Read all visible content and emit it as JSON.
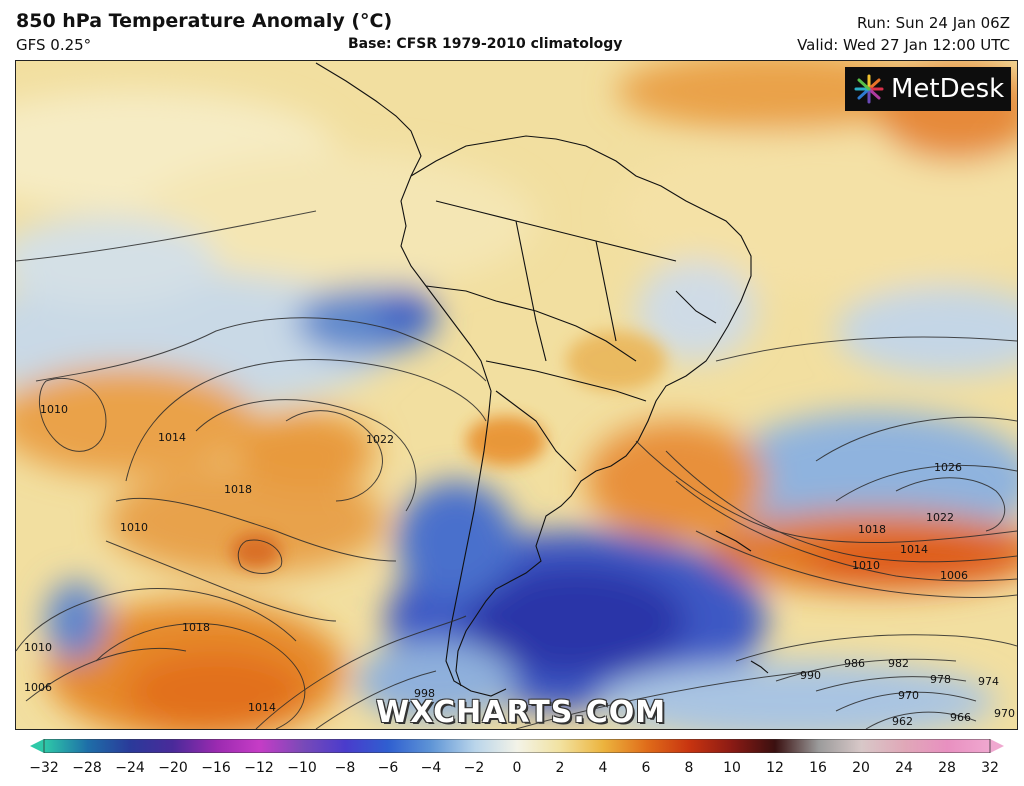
{
  "header": {
    "title": "850 hPa Temperature Anomaly (°C)",
    "model": "GFS 0.25°",
    "base": "Base: CFSR 1979-2010 climatology",
    "run": "Run: Sun 24 Jan 06Z",
    "valid": "Valid: Wed 27 Jan 12:00 UTC"
  },
  "logo": {
    "text": "MetDesk",
    "icon": "metdesk-star-icon"
  },
  "watermark": "WXCHARTS.COM",
  "pressure_labels": [
    "1010",
    "1014",
    "1018",
    "1022",
    "1010",
    "1006",
    "1010",
    "1018",
    "1014",
    "998",
    "1022",
    "1026",
    "1018",
    "1014",
    "1010",
    "1006",
    "990",
    "986",
    "982",
    "978",
    "974",
    "970",
    "966",
    "962",
    "970"
  ],
  "colorbar": {
    "ticks": [
      "−32",
      "−28",
      "−24",
      "−20",
      "−16",
      "−12",
      "−10",
      "−8",
      "−6",
      "−4",
      "−2",
      "0",
      "2",
      "4",
      "6",
      "8",
      "10",
      "12",
      "16",
      "20",
      "24",
      "28",
      "32"
    ],
    "colors": [
      "#2ec9a8",
      "#1e6fa8",
      "#2a3a9a",
      "#4a2a9a",
      "#9a2ab0",
      "#c63cc6",
      "#7a4ab8",
      "#4a3ccc",
      "#2f5fd0",
      "#5f95d6",
      "#b8d4ea",
      "#f3f3e8",
      "#f2e2a0",
      "#ecb43e",
      "#e06d1a",
      "#c83410",
      "#8a1a14",
      "#3a1010",
      "#9a9a9a",
      "#d8c8c8",
      "#e0a8b8",
      "#e890c0",
      "#f0a8d0"
    ]
  }
}
